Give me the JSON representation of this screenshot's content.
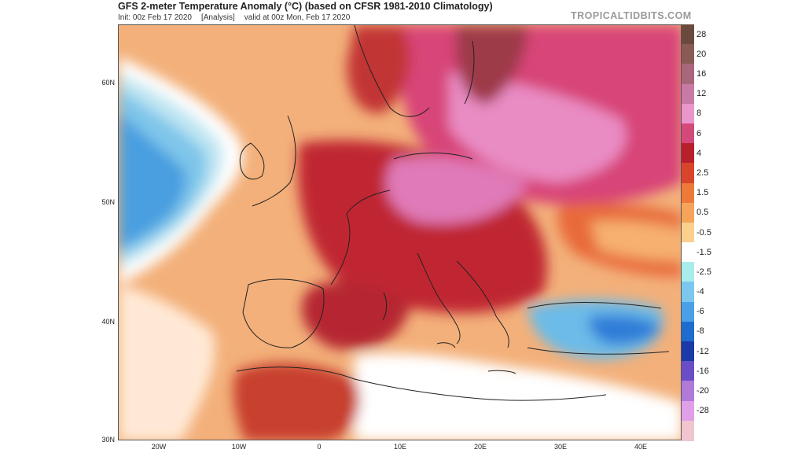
{
  "header": {
    "title": "GFS 2-meter Temperature Anomaly (°C) (based on CFSR 1981-2010 Climatology)",
    "init": "Init: 00z Feb 17 2020",
    "analysis": "[Analysis]",
    "valid": "valid at 00z Mon, Feb 17 2020",
    "brand": "TROPICALTIDBITS.COM"
  },
  "map": {
    "lat_labels": [
      "60N",
      "50N",
      "40N",
      "30N"
    ],
    "lon_labels": [
      "20W",
      "10W",
      "0",
      "10E",
      "20E",
      "30E",
      "40E"
    ]
  },
  "colorbar": {
    "labels": [
      "28",
      "20",
      "16",
      "12",
      "8",
      "6",
      "4",
      "2.5",
      "1.5",
      "0.5",
      "-0.5",
      "-1.5",
      "-2.5",
      "-4",
      "-6",
      "-8",
      "-12",
      "-16",
      "-20",
      "-28"
    ],
    "colors": [
      "#6b4a3e",
      "#8a5a55",
      "#a8677a",
      "#c77aa6",
      "#e996cc",
      "#d34a7a",
      "#b8202c",
      "#d8452a",
      "#ee7a3a",
      "#f5a45a",
      "#f9d08c",
      "#ffffff",
      "#a9ecec",
      "#7cc7ee",
      "#4aa0e8",
      "#1e6cd0",
      "#1b3aa8",
      "#6a4ec8",
      "#b07ad8",
      "#e0a0e8",
      "#f2c4d0"
    ]
  }
}
